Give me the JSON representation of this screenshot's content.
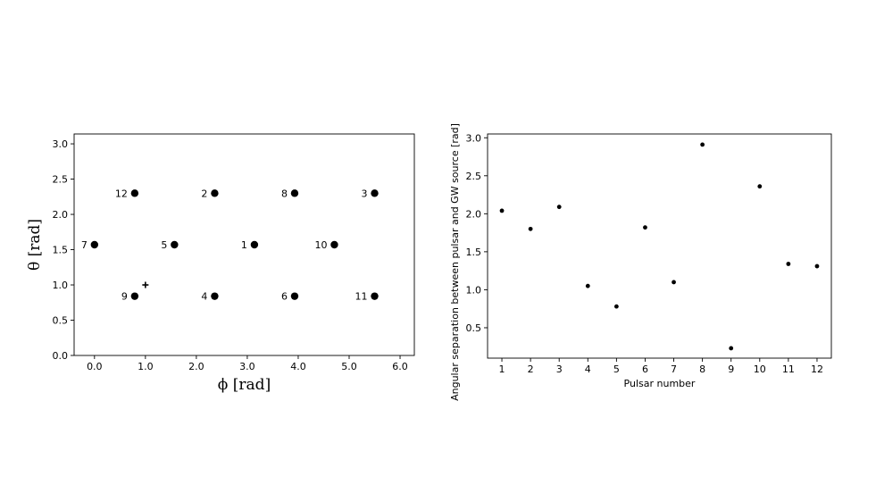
{
  "chart_data": [
    {
      "type": "scatter",
      "xlabel": "ϕ [rad]",
      "ylabel": "θ [rad]",
      "xlim": [
        -0.4,
        6.28
      ],
      "ylim": [
        0.0,
        3.14
      ],
      "xticks": [
        0.0,
        1.0,
        2.0,
        3.0,
        4.0,
        5.0,
        6.0
      ],
      "xtick_labels": [
        "0.0",
        "1.0",
        "2.0",
        "3.0",
        "4.0",
        "5.0",
        "6.0"
      ],
      "yticks": [
        0.0,
        0.5,
        1.0,
        1.5,
        2.0,
        2.5,
        3.0
      ],
      "ytick_labels": [
        "0.0",
        "0.5",
        "1.0",
        "1.5",
        "2.0",
        "2.5",
        "3.0"
      ],
      "points": [
        {
          "label": "1",
          "x": 3.14,
          "y": 1.57
        },
        {
          "label": "2",
          "x": 2.36,
          "y": 2.3
        },
        {
          "label": "3",
          "x": 5.5,
          "y": 2.3
        },
        {
          "label": "4",
          "x": 2.36,
          "y": 0.84
        },
        {
          "label": "5",
          "x": 1.57,
          "y": 1.57
        },
        {
          "label": "6",
          "x": 3.93,
          "y": 0.84
        },
        {
          "label": "7",
          "x": 0.0,
          "y": 1.57
        },
        {
          "label": "8",
          "x": 3.93,
          "y": 2.3
        },
        {
          "label": "9",
          "x": 0.79,
          "y": 0.84
        },
        {
          "label": "10",
          "x": 4.71,
          "y": 1.57
        },
        {
          "label": "11",
          "x": 5.5,
          "y": 0.84
        },
        {
          "label": "12",
          "x": 0.79,
          "y": 2.3
        }
      ],
      "source_marker": {
        "x": 1.0,
        "y": 1.0
      }
    },
    {
      "type": "scatter",
      "xlabel": "Pulsar number",
      "ylabel": "Angular separation between pulsar and GW source [rad]",
      "xlim": [
        0.5,
        12.5
      ],
      "ylim": [
        0.1,
        3.05
      ],
      "xticks": [
        1,
        2,
        3,
        4,
        5,
        6,
        7,
        8,
        9,
        10,
        11,
        12
      ],
      "xtick_labels": [
        "1",
        "2",
        "3",
        "4",
        "5",
        "6",
        "7",
        "8",
        "9",
        "10",
        "11",
        "12"
      ],
      "yticks": [
        0.5,
        1.0,
        1.5,
        2.0,
        2.5,
        3.0
      ],
      "ytick_labels": [
        "0.5",
        "1.0",
        "1.5",
        "2.0",
        "2.5",
        "3.0"
      ],
      "x": [
        1,
        2,
        3,
        4,
        5,
        6,
        7,
        8,
        9,
        10,
        11,
        12
      ],
      "y": [
        2.04,
        1.8,
        2.09,
        1.05,
        0.78,
        1.82,
        1.1,
        2.91,
        0.23,
        2.36,
        1.34,
        1.31
      ]
    }
  ]
}
